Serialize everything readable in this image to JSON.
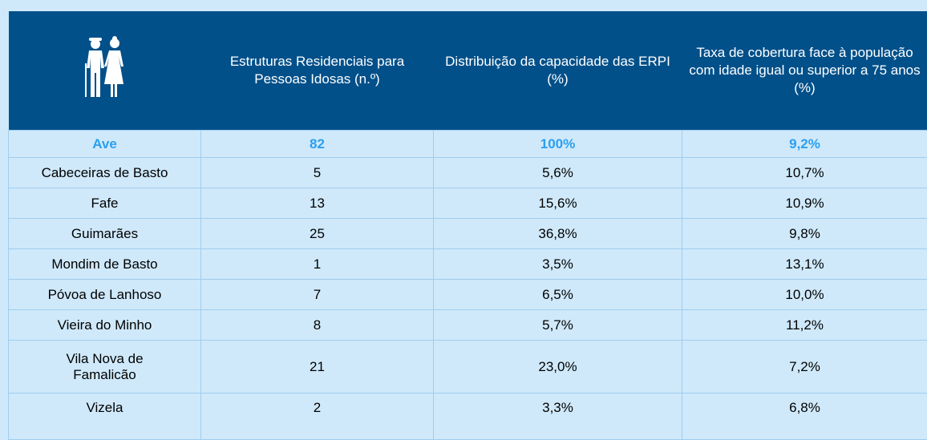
{
  "table": {
    "headers": [
      "Estruturas Residenciais para Pessoas Idosas (n.º)",
      "Distribuição da capacidade das ERPI (%)",
      "Taxa de cobertura face à população com idade igual ou superior a 75 anos (%)"
    ],
    "total": [
      "Ave",
      "82",
      "100%",
      "9,2%"
    ],
    "rows": [
      [
        "Cabeceiras de Basto",
        "5",
        "5,6%",
        "10,7%"
      ],
      [
        "Fafe",
        "13",
        "15,6%",
        "10,9%"
      ],
      [
        "Guimarães",
        "25",
        "36,8%",
        "9,8%"
      ],
      [
        "Mondim de Basto",
        "1",
        "3,5%",
        "13,1%"
      ],
      [
        "Póvoa de Lanhoso",
        "7",
        "6,5%",
        "10,0%"
      ],
      [
        "Vieira do Minho",
        "8",
        "5,7%",
        "11,2%"
      ],
      [
        "Vila Nova de Famalicão",
        "21",
        "23,0%",
        "7,2%"
      ],
      [
        "Vizela",
        "2",
        "3,3%",
        "6,8%"
      ]
    ]
  }
}
